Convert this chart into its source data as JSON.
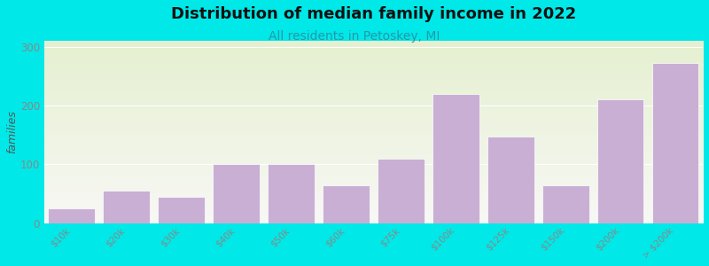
{
  "title": "Distribution of median family income in 2022",
  "subtitle": "All residents in Petoskey, MI",
  "ylabel": "families",
  "categories": [
    "$10k",
    "$20k",
    "$30k",
    "$40k",
    "$50k",
    "$60k",
    "$75k",
    "$100k",
    "$125k",
    "$150k",
    "$200k",
    "> $200k"
  ],
  "values": [
    25,
    55,
    45,
    100,
    100,
    65,
    110,
    220,
    148,
    65,
    210,
    273
  ],
  "bar_color": "#c9afd4",
  "bar_edge_color": "#c9afd4",
  "background_outer": "#00e8e8",
  "plot_bg_top": "#f8f8f5",
  "plot_bg_bottom": "#e5f0d0",
  "title_fontsize": 13,
  "subtitle_fontsize": 10,
  "subtitle_color": "#2299aa",
  "title_color": "#111111",
  "ylabel_color": "#555555",
  "tick_color": "#888888",
  "ylim": [
    0,
    310
  ],
  "yticks": [
    0,
    100,
    200,
    300
  ]
}
